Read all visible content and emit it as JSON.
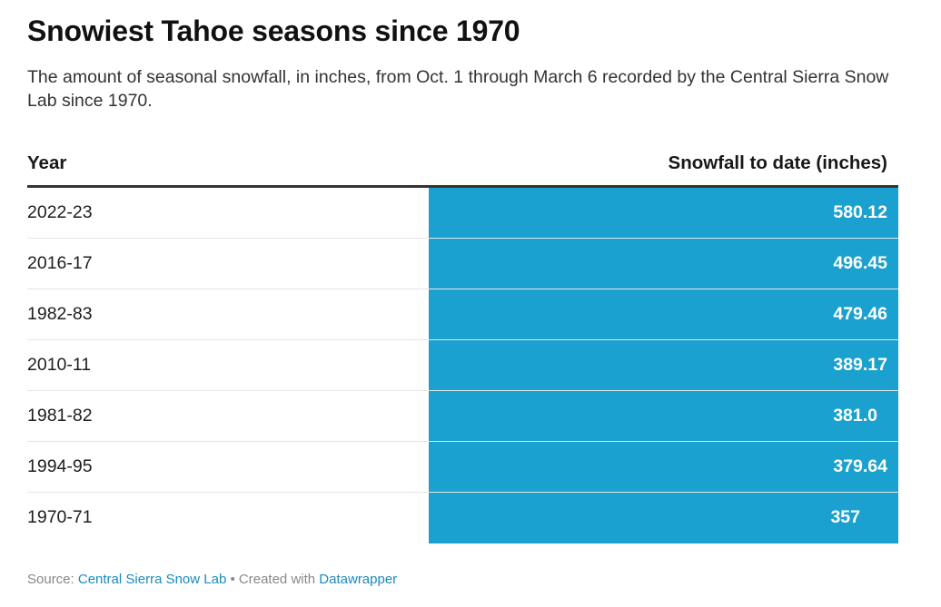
{
  "title": "Snowiest Tahoe seasons since 1970",
  "subtitle": "The amount of seasonal snowfall, in inches, from Oct. 1 through March 6 recorded by the Central Sierra Snow Lab since 1970.",
  "chart_data": {
    "type": "table",
    "columns": [
      "Year",
      "Snowfall to date (inches)"
    ],
    "rows": [
      {
        "year": "2022-23",
        "value": "580.12"
      },
      {
        "year": "2016-17",
        "value": "496.45"
      },
      {
        "year": "1982-83",
        "value": "479.46"
      },
      {
        "year": "2010-11",
        "value": "389.17"
      },
      {
        "year": "1981-82",
        "value": "381.0"
      },
      {
        "year": "1994-95",
        "value": "379.64"
      },
      {
        "year": "1970-71",
        "value": "357"
      }
    ],
    "bar_color": "#1ba1cf"
  },
  "footer": {
    "source_label": "Source:",
    "source_name": "Central Sierra Snow Lab",
    "separator": "•",
    "created_label": "Created with",
    "tool_name": "Datawrapper"
  }
}
